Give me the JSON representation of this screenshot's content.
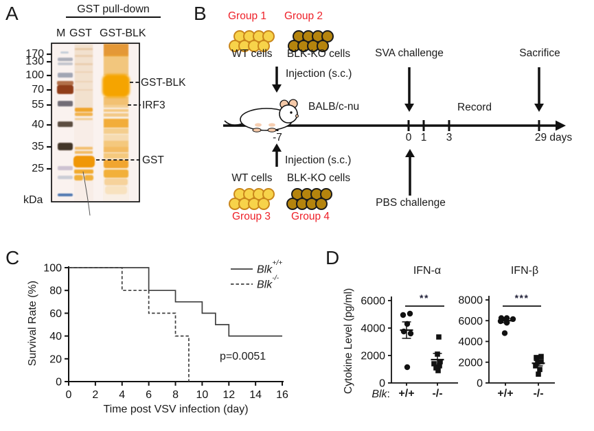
{
  "colors": {
    "red_label": "#EE2129",
    "wt_cell_fill": "#F7D34A",
    "wt_cell_stroke": "#C9861B",
    "ko_cell_fill": "#B5840D",
    "ko_cell_stroke": "#1A1A1A",
    "series_line": "#3F3F3F",
    "gel_orange": "#F0A000",
    "marker_red_brown": "#8A3410",
    "marker_blue": "#3A6AAA",
    "mouse_pink": "#F5C9A8"
  },
  "panel_a": {
    "label": "A",
    "header": "GST pull-down",
    "lanes": [
      "M",
      "GST",
      "GST-BLK"
    ],
    "markers": [
      "170",
      "130",
      "100",
      "70",
      "55",
      "40",
      "35",
      "25"
    ],
    "unit": "kDa",
    "bands": [
      "GST-BLK",
      "IRF3",
      "GST"
    ]
  },
  "panel_b": {
    "label": "B",
    "groups": [
      "Group 1",
      "Group 2",
      "Group 3",
      "Group 4"
    ],
    "wt_cells": "WT cells",
    "ko_cells": "BLK-KO cells",
    "injection": "Injection (s.c.)",
    "sva": "SVA challenge",
    "sacrifice": "Sacrifice",
    "record": "Record",
    "mouse_strain": "BALB/c-nu",
    "pbs": "PBS challenge",
    "timeline_ticks": [
      "-7",
      "0",
      "1",
      "3",
      "29 days"
    ]
  },
  "panel_c": {
    "label": "C"
  },
  "panel_d": {
    "label": "D"
  },
  "chart_data": [
    {
      "type": "line",
      "name": "survival-curve",
      "xlabel": "Time post VSV infection (day)",
      "ylabel": "Survival Rate (%)",
      "xlim": [
        0,
        16
      ],
      "ylim": [
        0,
        100
      ],
      "xticks": [
        0,
        2,
        4,
        6,
        8,
        10,
        12,
        14,
        16
      ],
      "yticks": [
        0,
        20,
        40,
        60,
        80,
        100
      ],
      "p_value": "p=0.0051",
      "legend_position": "top-right",
      "legend": [
        {
          "gene": "Blk",
          "allele": "+/+",
          "style": "solid"
        },
        {
          "gene": "Blk",
          "allele": "-/-",
          "style": "dashed"
        }
      ],
      "series": [
        {
          "name": "Blk+/+",
          "style": "solid",
          "x": [
            0,
            6,
            6,
            8,
            8,
            10,
            10,
            11,
            11,
            12,
            12,
            16
          ],
          "y": [
            100,
            100,
            80,
            80,
            70,
            70,
            60,
            60,
            50,
            50,
            40,
            40
          ]
        },
        {
          "name": "Blk-/-",
          "style": "dashed",
          "x": [
            0,
            4,
            4,
            6,
            6,
            8,
            8,
            9,
            9
          ],
          "y": [
            100,
            100,
            80,
            80,
            60,
            60,
            40,
            40,
            0
          ]
        }
      ]
    },
    {
      "type": "scatter",
      "title": "IFN-α",
      "ylabel": "Cytokine Level (pg/ml)",
      "ylim": [
        0,
        6000
      ],
      "yticks": [
        0,
        2000,
        4000,
        6000
      ],
      "significance": "**",
      "x_prefix": {
        "gene": "Blk",
        "sep": ":"
      },
      "groups": [
        {
          "label": "+/+",
          "marker": "circle",
          "points": [
            [
              -5,
              4950
            ],
            [
              5,
              5050
            ],
            [
              1,
              4300
            ],
            [
              -4,
              3750
            ],
            [
              6,
              3600
            ],
            [
              1,
              1150
            ]
          ],
          "mean": 3850,
          "sem_upper": 4450,
          "sem_lower": 3250
        },
        {
          "label": "-/-",
          "marker": "square",
          "points": [
            [
              2,
              3350
            ],
            [
              0,
              2100
            ],
            [
              4,
              1550
            ],
            [
              -5,
              1400
            ],
            [
              3,
              1250
            ],
            [
              -2,
              1100
            ],
            [
              1,
              900
            ]
          ],
          "mean": 1700,
          "sem_upper": 2150,
          "sem_lower": 1300
        }
      ]
    },
    {
      "type": "scatter",
      "title": "IFN-β",
      "ylim": [
        0,
        8000
      ],
      "yticks": [
        0,
        2000,
        4000,
        6000,
        8000
      ],
      "significance": "***",
      "groups": [
        {
          "label": "+/+",
          "marker": "circle",
          "points": [
            [
              -6,
              6250
            ],
            [
              2,
              6250
            ],
            [
              11,
              6150
            ],
            [
              -7,
              5950
            ],
            [
              1,
              6050
            ],
            [
              2,
              5800
            ],
            [
              -1,
              4800
            ]
          ],
          "mean": 6000,
          "sem_upper": 6200,
          "sem_lower": 5800
        },
        {
          "label": "-/-",
          "marker": "square",
          "points": [
            [
              -3,
              2450
            ],
            [
              4,
              2550
            ],
            [
              -1,
              2000
            ],
            [
              4,
              2050
            ],
            [
              -4,
              1650
            ],
            [
              2,
              1300
            ],
            [
              0,
              850
            ]
          ],
          "mean": 1900,
          "sem_upper": 2150,
          "sem_lower": 1650
        }
      ]
    }
  ]
}
